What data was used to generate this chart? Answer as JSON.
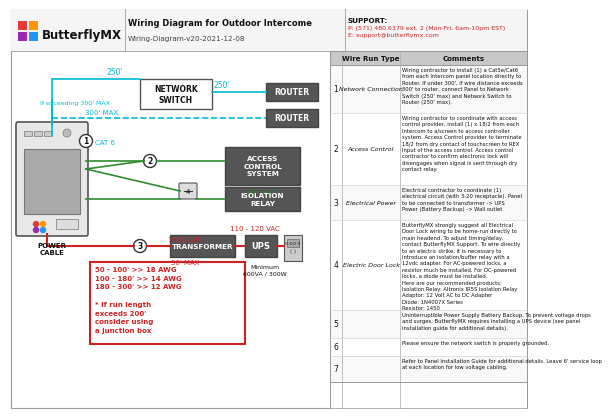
{
  "title": "Wiring Diagram for Outdoor Intercome",
  "subtitle": "Wiring-Diagram-v20-2021-12-08",
  "support_line1": "SUPPORT:",
  "support_line2": "P: (571) 480.6379 ext. 2 (Mon-Fri, 6am-10pm EST)",
  "support_line3": "E: support@butterflymx.com",
  "bg_color": "#ffffff",
  "cyan_color": "#00bcd4",
  "green_color": "#2e8b2e",
  "red_color": "#cc2222",
  "logo_colors": [
    "#e53935",
    "#ff9800",
    "#9c27b0",
    "#2196f3"
  ],
  "table_rows": [
    {
      "num": "1",
      "type": "Network Connection",
      "comment": "Wiring contractor to install (1) a Cat5e/Cat6\nfrom each Intercom panel location directly to\nRouter. If under 300', if wire distance exceeds\n300' to router, connect Panel to Network\nSwitch (250' max) and Network Switch to\nRouter (250' max)."
    },
    {
      "num": "2",
      "type": "Access Control",
      "comment": "Wiring contractor to coordinate with access\ncontrol provider, install (1) x 18/2 from each\nIntercom to a/screen to access controller\nsystem. Access Control provider to terminate\n18/2 from dry contact of touchscreen to REX\nInput of the access control. Access control\ncontractor to confirm electronic lock will\ndisengages when signal is sent through dry\ncontact relay."
    },
    {
      "num": "3",
      "type": "Electrical Power",
      "comment": "Electrical contractor to coordinate (1)\nelectrical circuit (with 3-20 receptacle). Panel\nto be connected to transformer -> UPS\nPower (Battery Backup) -> Wall outlet"
    },
    {
      "num": "4",
      "type": "Electric Door Lock",
      "comment": "ButterflyMX strongly suggest all Electrical\nDoor Lock wiring to be home-run directly to\nmain headend. To adjust timing/delay,\ncontact ButterflyMX Support. To wire directly\nto an electric strike, it is necessary to\nintroduce an isolation/buffer relay with a\n12vdc adapter. For AC-powered locks, a\nresistor much be installed. For DC-powered\nlocks, a diode must be installed.\nHere are our recommended products:\nIsolation Relay: Altronix IR5S Isolation Relay\nAdaptor: 12 Volt AC to DC Adapter\nDiode: 1N4007X Series\nResistor: 1450"
    },
    {
      "num": "5",
      "type": "",
      "comment": "Uninterruptible Power Supply Battery Backup. To prevent voltage drops\nand surges, ButterflyMX requires installing a UPS device (see panel\ninstallation guide for additional details)."
    },
    {
      "num": "6",
      "type": "",
      "comment": "Please ensure the network switch is properly grounded."
    },
    {
      "num": "7",
      "type": "",
      "comment": "Refer to Panel Installation Guide for additional details. Leave 6' service loop\nat each location for low voltage cabling."
    }
  ]
}
